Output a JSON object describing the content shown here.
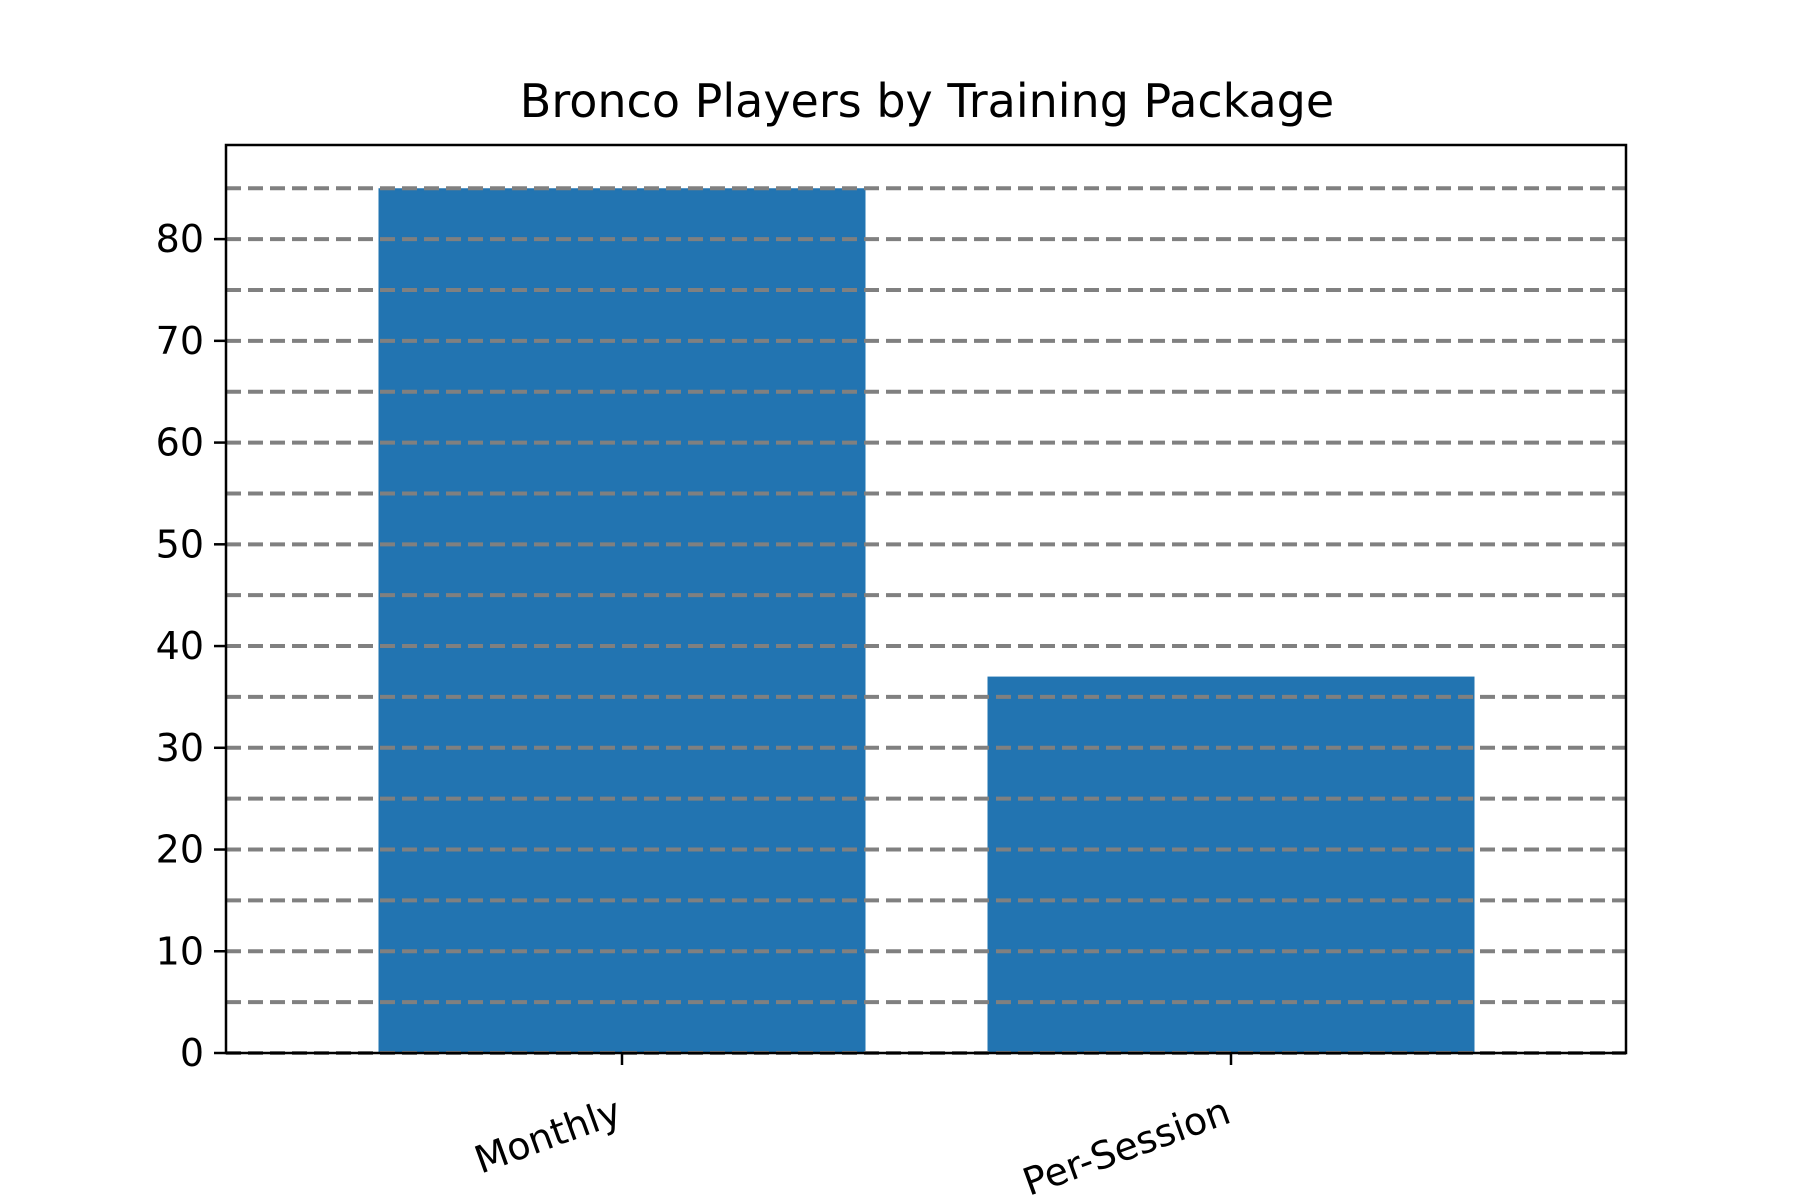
{
  "chart_data": {
    "type": "bar",
    "title": "Bronco Players by Training Package",
    "xlabel": "",
    "ylabel": "",
    "categories": [
      "Monthly",
      "Per-Session"
    ],
    "values": [
      85,
      37
    ],
    "ylim": [
      0,
      89.25
    ],
    "yticks": [
      0,
      10,
      20,
      30,
      40,
      50,
      60,
      70,
      80
    ],
    "ytick_labels": [
      "0",
      "10",
      "20",
      "30",
      "40",
      "50",
      "60",
      "70",
      "80"
    ],
    "grid": {
      "axis": "y",
      "step": 5,
      "style": "dashed",
      "color": "#808080"
    },
    "bar_color": "#2274b1",
    "x_tick_rotation": -20,
    "legend": "none"
  }
}
